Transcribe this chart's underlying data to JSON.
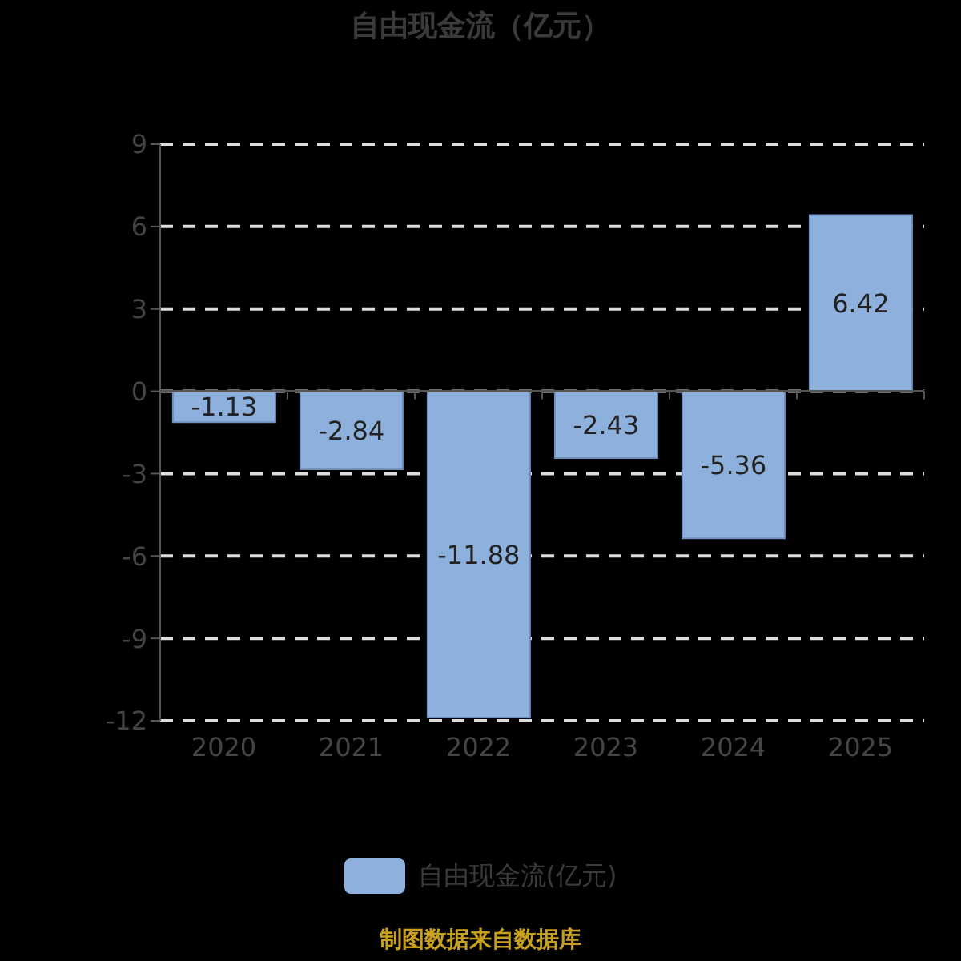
{
  "chart_data": {
    "type": "bar",
    "title": "自由现金流（亿元）",
    "categories": [
      "2020",
      "2021",
      "2022",
      "2023",
      "2024",
      "2025"
    ],
    "series": [
      {
        "name": "自由现金流(亿元)",
        "color": "#8eb0dc",
        "values": [
          -1.13,
          -2.84,
          -11.88,
          -2.43,
          -5.36,
          6.42
        ]
      }
    ],
    "ylim": [
      -12,
      9
    ],
    "yticks": [
      -12,
      -9,
      -6,
      -3,
      0,
      3,
      6,
      9
    ],
    "grid": "y",
    "legend": "bottom",
    "data_labels": true,
    "annotations": [
      "制图数据来自数据库"
    ]
  }
}
